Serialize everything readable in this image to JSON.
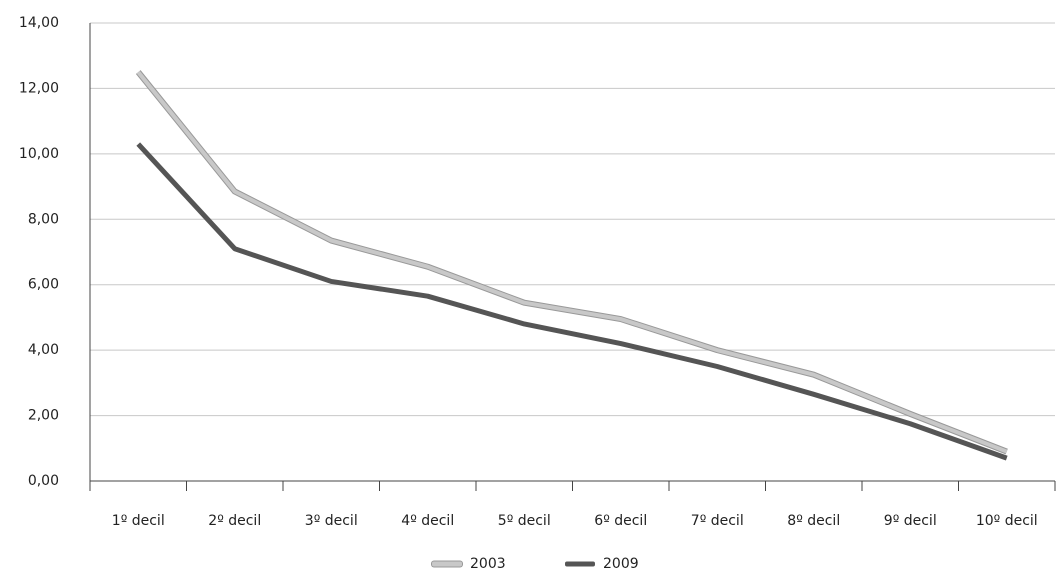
{
  "chart_data": {
    "type": "line",
    "categories": [
      "1º decil",
      "2º decil",
      "3º decil",
      "4º decil",
      "5º decil",
      "6º decil",
      "7º decil",
      "8º decil",
      "9º decil",
      "10º decil"
    ],
    "series": [
      {
        "name": "2003",
        "color": "#c8c8c8",
        "values": [
          12.5,
          8.85,
          7.35,
          6.55,
          5.45,
          4.95,
          4.0,
          3.25,
          2.05,
          0.9
        ]
      },
      {
        "name": "2009",
        "color": "#555555",
        "values": [
          10.3,
          7.1,
          6.1,
          5.65,
          4.8,
          4.2,
          3.5,
          2.65,
          1.75,
          0.7
        ]
      }
    ],
    "ylim": [
      0,
      14
    ],
    "yticks": [
      {
        "value": 0,
        "label": "0,00"
      },
      {
        "value": 2,
        "label": "2,00"
      },
      {
        "value": 4,
        "label": "4,00"
      },
      {
        "value": 6,
        "label": "6,00"
      },
      {
        "value": 8,
        "label": "8,00"
      },
      {
        "value": 10,
        "label": "10,00"
      },
      {
        "value": 12,
        "label": "12,00"
      },
      {
        "value": 14,
        "label": "14,00"
      }
    ],
    "grid": true
  }
}
